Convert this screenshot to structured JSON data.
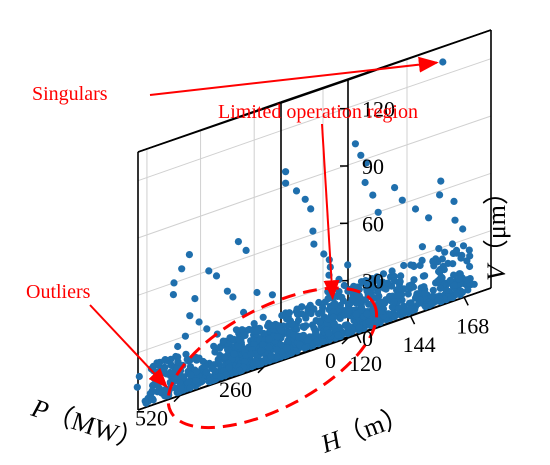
{
  "chart_data": {
    "type": "scatter",
    "title": "",
    "axes": {
      "x": {
        "name": "P",
        "label_rest": "（MW）",
        "ticks": [
          0,
          260,
          520
        ],
        "range": [
          0,
          650
        ]
      },
      "y": {
        "name": "H",
        "label_rest": "（m）",
        "ticks": [
          120,
          144,
          168
        ],
        "range": [
          116,
          180
        ]
      },
      "z": {
        "name": "V",
        "label_rest": "（μm）",
        "ticks": [
          0,
          30,
          60,
          90,
          120
        ],
        "range": [
          0,
          135
        ]
      }
    },
    "grid": true,
    "annotations": [
      {
        "text": "Singulars",
        "points_to": {
          "P": 80,
          "H": 170,
          "V": 127
        }
      },
      {
        "text": "Limited operation region",
        "points_to": {
          "P": 330,
          "H": 157,
          "V": 20
        }
      },
      {
        "text": "Outliers",
        "points_to": {
          "P": 590,
          "H": 122,
          "V": 4
        }
      }
    ],
    "region_outline": "dashed ellipse around P≈250–550, H≈120–160, V≈0–10",
    "marker_color": "#1f6fad",
    "annotation_color": "#ff0000",
    "clusters": [
      {
        "P_range": [
          300,
          640
        ],
        "H_range": [
          118,
          135
        ],
        "V_range": [
          2,
          22
        ],
        "count": 300
      },
      {
        "P_range": [
          150,
          480
        ],
        "H_range": [
          130,
          150
        ],
        "V_range": [
          2,
          26
        ],
        "count": 280
      },
      {
        "P_range": [
          50,
          300
        ],
        "H_range": [
          150,
          178
        ],
        "V_range": [
          2,
          28
        ],
        "count": 260
      },
      {
        "P_range": [
          60,
          520
        ],
        "H_range": [
          118,
          178
        ],
        "V_range": [
          2,
          14
        ],
        "count": 200
      }
    ],
    "scattered_points": [
      {
        "P": 580,
        "H": 122,
        "V": 60
      },
      {
        "P": 570,
        "H": 124,
        "V": 66
      },
      {
        "P": 560,
        "H": 126,
        "V": 72
      },
      {
        "P": 575,
        "H": 121,
        "V": 54
      },
      {
        "P": 550,
        "H": 127,
        "V": 48
      },
      {
        "P": 545,
        "H": 124,
        "V": 40
      },
      {
        "P": 530,
        "H": 126,
        "V": 35
      },
      {
        "P": 520,
        "H": 128,
        "V": 30
      },
      {
        "P": 500,
        "H": 126,
        "V": 60
      },
      {
        "P": 490,
        "H": 128,
        "V": 56
      },
      {
        "P": 470,
        "H": 130,
        "V": 46
      },
      {
        "P": 460,
        "H": 131,
        "V": 42
      },
      {
        "P": 450,
        "H": 132,
        "V": 70
      },
      {
        "P": 440,
        "H": 134,
        "V": 64
      },
      {
        "P": 420,
        "H": 130,
        "V": 32
      },
      {
        "P": 380,
        "H": 143,
        "V": 98
      },
      {
        "P": 380,
        "H": 143,
        "V": 92
      },
      {
        "P": 360,
        "H": 145,
        "V": 86
      },
      {
        "P": 340,
        "H": 146,
        "V": 80
      },
      {
        "P": 330,
        "H": 147,
        "V": 74
      },
      {
        "P": 330,
        "H": 148,
        "V": 62
      },
      {
        "P": 320,
        "H": 147,
        "V": 55
      },
      {
        "P": 310,
        "H": 150,
        "V": 48
      },
      {
        "P": 300,
        "H": 151,
        "V": 44
      },
      {
        "P": 290,
        "H": 150,
        "V": 40
      },
      {
        "P": 280,
        "H": 148,
        "V": 36
      },
      {
        "P": 270,
        "H": 151,
        "V": 32
      },
      {
        "P": 250,
        "H": 152,
        "V": 38
      },
      {
        "P": 240,
        "H": 154,
        "V": 100
      },
      {
        "P": 230,
        "H": 155,
        "V": 93
      },
      {
        "P": 220,
        "H": 156,
        "V": 88
      },
      {
        "P": 210,
        "H": 154,
        "V": 78
      },
      {
        "P": 200,
        "H": 156,
        "V": 70
      },
      {
        "P": 190,
        "H": 157,
        "V": 60
      },
      {
        "P": 160,
        "H": 160,
        "V": 70
      },
      {
        "P": 150,
        "H": 162,
        "V": 62
      },
      {
        "P": 130,
        "H": 165,
        "V": 55
      },
      {
        "P": 110,
        "H": 168,
        "V": 48
      },
      {
        "P": 100,
        "H": 172,
        "V": 65
      },
      {
        "P": 90,
        "H": 170,
        "V": 58
      },
      {
        "P": 80,
        "H": 175,
        "V": 52
      },
      {
        "P": 70,
        "H": 174,
        "V": 42
      },
      {
        "P": 60,
        "H": 176,
        "V": 36
      },
      {
        "P": 50,
        "H": 170,
        "V": 30
      },
      {
        "P": 120,
        "H": 174,
        "V": 30
      },
      {
        "P": 150,
        "H": 171,
        "V": 34
      },
      {
        "P": 420,
        "H": 136,
        "V": 40
      },
      {
        "P": 400,
        "H": 140,
        "V": 36
      },
      {
        "P": 600,
        "H": 130,
        "V": 30
      },
      {
        "P": 610,
        "H": 128,
        "V": 26
      }
    ]
  }
}
